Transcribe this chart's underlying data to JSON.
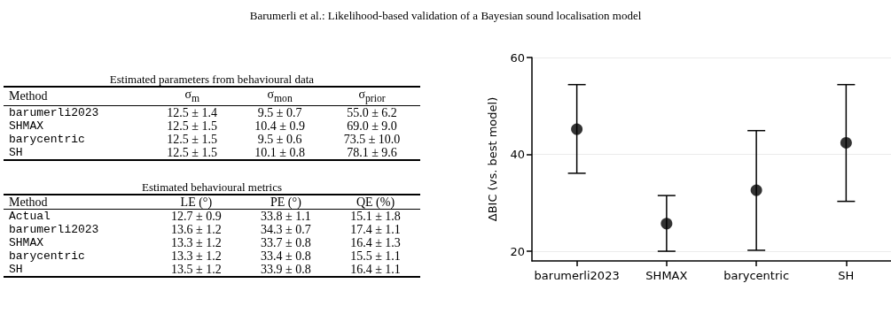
{
  "chart_data": [
    {
      "type": "other",
      "title": "Estimated parameters from behavioural data",
      "annotations": [
        "Barumerli et al.: Likelihood-based validation of a Bayesian sound localisation model"
      ],
      "categories": [
        "Method",
        "σ$_{m}$",
        "σ$_{mon}$",
        "σ$_{prior}$"
      ],
      "cell_labels": [
        [
          "barumerli2023",
          "12.5 ± 1.4",
          "9.5 ± 0.7",
          "55.0 ± 6.2"
        ],
        [
          "SHMAX",
          "12.5 ± 1.5",
          "10.4 ± 0.9",
          "69.0 ± 9.0"
        ],
        [
          "barycentric",
          "12.5 ± 1.5",
          "9.5 ± 0.6",
          "73.5 ± 10.0"
        ],
        [
          "SH",
          "12.5 ± 1.5",
          "10.1 ± 0.8",
          "78.1 ± 9.6"
        ]
      ]
    },
    {
      "type": "other",
      "title": "Estimated behavioural metrics",
      "categories": [
        "Method",
        "LE (°)",
        "PE (°)",
        "QE (%)"
      ],
      "cell_labels": [
        [
          "Actual",
          "12.7 ± 0.9",
          "33.8 ± 1.1",
          "15.1 ± 1.8"
        ],
        [
          "barumerli2023",
          "13.6 ± 1.2",
          "34.3 ± 0.7",
          "17.4 ± 1.1"
        ],
        [
          "SHMAX",
          "13.3 ± 1.2",
          "33.7 ± 0.8",
          "16.4 ± 1.3"
        ],
        [
          "barycentric",
          "13.3 ± 1.2",
          "33.4 ± 0.8",
          "15.5 ± 1.1"
        ],
        [
          "SH",
          "13.5 ± 1.2",
          "33.9 ± 0.8",
          "16.4 ± 1.1"
        ]
      ]
    },
    {
      "type": "scatter",
      "ylabel": "ΔBIC (vs. best model)",
      "categories": [
        "barumerli2023",
        "SHMAX",
        "barycentric",
        "SH"
      ],
      "values": [
        45.2,
        25.7,
        32.6,
        42.4
      ],
      "errors": [
        [
          36.1,
          54.4
        ],
        [
          20.0,
          31.5
        ],
        [
          20.2,
          44.9
        ],
        [
          30.3,
          54.4
        ]
      ],
      "color": "#000000",
      "marker": "circle",
      "grid": "y",
      "ylim": [
        18,
        60
      ],
      "yticks": [
        20,
        40,
        60
      ]
    }
  ]
}
